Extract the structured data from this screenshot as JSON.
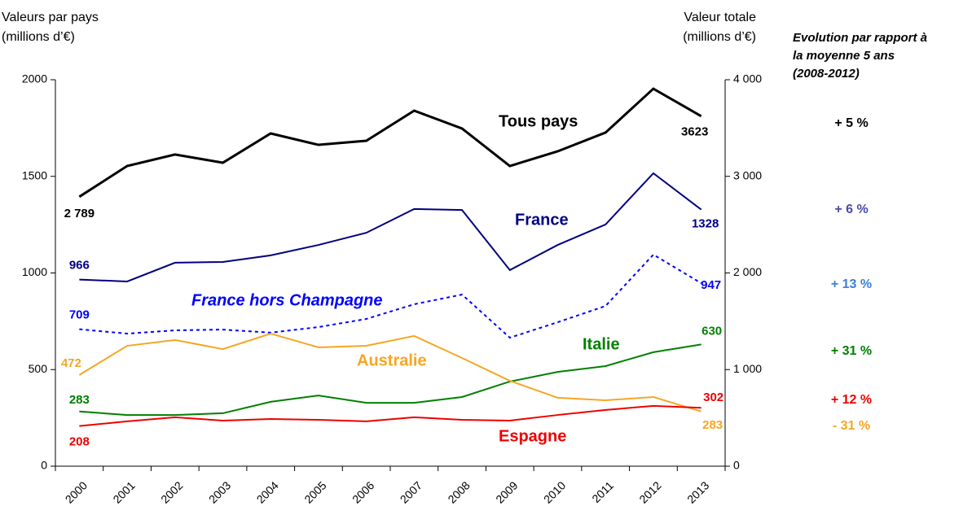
{
  "chart_data": {
    "type": "line",
    "y_label": [
      "Valeurs par pays",
      "(millions d’€)"
    ],
    "y2_label": [
      "Valeur totale",
      "(millions d’€)"
    ],
    "evolution_title": [
      "Evolution par rapport à",
      "la moyenne 5 ans",
      "(2008-2012)"
    ],
    "categories": [
      "2000",
      "2001",
      "2002",
      "2003",
      "2004",
      "2005",
      "2006",
      "2007",
      "2008",
      "2009",
      "2010",
      "2011",
      "2012",
      "2013"
    ],
    "ylim": [
      0,
      2000
    ],
    "yticks": [
      0,
      500,
      1000,
      1500,
      2000
    ],
    "y2lim": [
      0,
      4000
    ],
    "y2ticks": [
      0,
      {
        "value": 1000,
        "label": "1 000"
      },
      {
        "value": 2000,
        "label": "2 000"
      },
      {
        "value": 3000,
        "label": "3 000"
      },
      {
        "value": 4000,
        "label": "4 000"
      }
    ],
    "series": [
      {
        "name": "Tous pays",
        "color": "#000000",
        "axis": "y2",
        "evolution": 5,
        "evolution_label": "+ 5 %",
        "evolution_color": "#000000",
        "values": [
          2789,
          3107,
          3226,
          3141,
          3444,
          3326,
          3368,
          3680,
          3495,
          3107,
          3259,
          3453,
          3907,
          3623
        ],
        "value_labels": [
          "2 789",
          null,
          null,
          null,
          null,
          null,
          null,
          null,
          null,
          null,
          null,
          null,
          null,
          "3623"
        ]
      },
      {
        "name": "France",
        "color": "#000080",
        "evolution": 6,
        "evolution_label": "+ 6 %",
        "evolution_color": "#4b4ba6",
        "values": [
          966,
          956,
          1053,
          1057,
          1091,
          1145,
          1208,
          1331,
          1326,
          1015,
          1145,
          1251,
          1516,
          1328
        ],
        "value_labels": [
          "966",
          null,
          null,
          null,
          null,
          null,
          null,
          null,
          null,
          null,
          null,
          null,
          null,
          "1328"
        ]
      },
      {
        "name": "France hors Champagne",
        "color": "#0000ff",
        "dashed": true,
        "evolution": 13,
        "evolution_label": "+ 13 %",
        "evolution_color": "#3a7fd8",
        "values": [
          709,
          686,
          703,
          707,
          691,
          720,
          762,
          838,
          888,
          665,
          745,
          829,
          1095,
          947
        ],
        "value_labels": [
          "709",
          null,
          null,
          null,
          null,
          null,
          null,
          null,
          null,
          null,
          null,
          null,
          null,
          "947"
        ]
      },
      {
        "name": "Italie",
        "color": "#008000",
        "evolution": 31,
        "evolution_label": "+ 31 %",
        "evolution_color": "#008000",
        "values": [
          283,
          265,
          265,
          274,
          333,
          366,
          328,
          328,
          358,
          438,
          488,
          518,
          590,
          630
        ],
        "value_labels": [
          "283",
          null,
          null,
          null,
          null,
          null,
          null,
          null,
          null,
          null,
          null,
          null,
          null,
          "630"
        ]
      },
      {
        "name": "Australie",
        "color": "#f5a623",
        "evolution": -31,
        "evolution_label": "- 31 %",
        "evolution_color": "#f5a623",
        "values": [
          472,
          623,
          653,
          606,
          686,
          615,
          623,
          674,
          560,
          442,
          354,
          341,
          358,
          283
        ],
        "value_labels": [
          "472",
          null,
          null,
          null,
          null,
          null,
          null,
          null,
          null,
          null,
          null,
          null,
          null,
          "283"
        ]
      },
      {
        "name": "Espagne",
        "color": "#ee0000",
        "evolution": 12,
        "evolution_label": "+ 12 %",
        "evolution_color": "#ee0000",
        "values": [
          208,
          232,
          253,
          236,
          244,
          240,
          232,
          253,
          240,
          236,
          265,
          291,
          312,
          302
        ],
        "value_labels": [
          "208",
          null,
          null,
          null,
          null,
          null,
          null,
          null,
          null,
          null,
          null,
          null,
          null,
          "302"
        ]
      }
    ]
  }
}
